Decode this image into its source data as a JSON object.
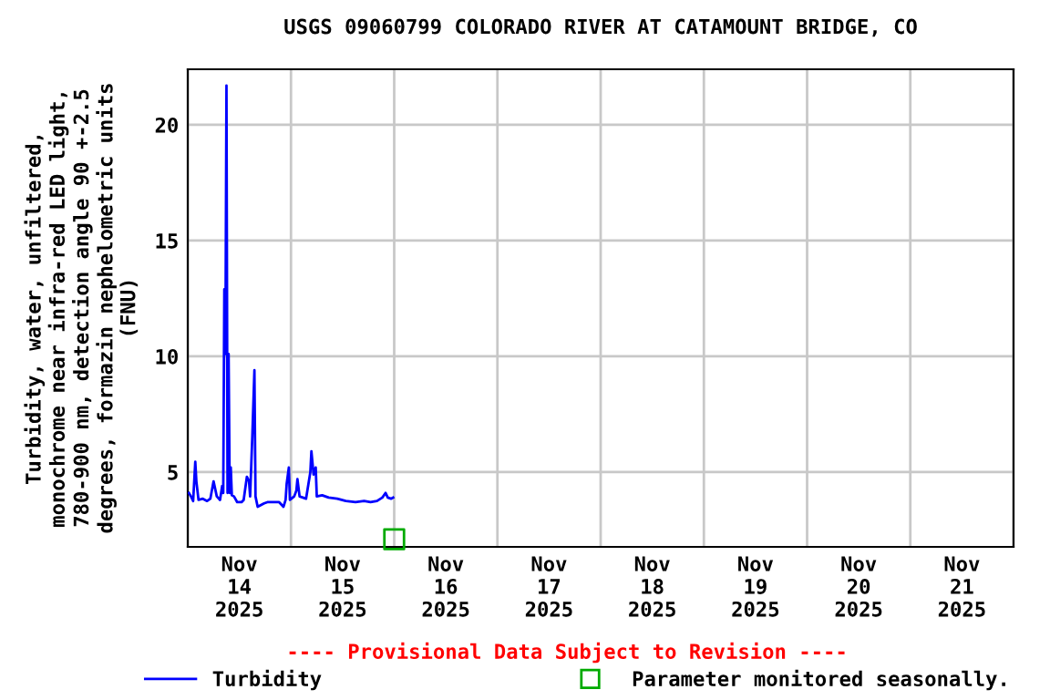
{
  "chart_data": {
    "type": "line",
    "title": "USGS 09060799 COLORADO RIVER AT CATAMOUNT BRIDGE, CO",
    "ylabel": "Turbidity, water, unfiltered,\nmonochrome near infra-red LED light,\n780-900 nm, detection angle 90 +-2.5\ndegrees, formazin nephelometric units\n(FNU)",
    "annotations": [
      "---- Provisional Data Subject to Revision ----"
    ],
    "series": [
      {
        "name": "Turbidity",
        "color": "#0000ff",
        "x": [
          "2025-11-14T00:15",
          "2025-11-14T00:45",
          "2025-11-14T01:15",
          "2025-11-14T01:45",
          "2025-11-14T02:00",
          "2025-11-14T02:30",
          "2025-11-14T03:30",
          "2025-11-14T04:30",
          "2025-11-14T05:15",
          "2025-11-14T06:00",
          "2025-11-14T06:45",
          "2025-11-14T07:30",
          "2025-11-14T08:00",
          "2025-11-14T08:15",
          "2025-11-14T08:30",
          "2025-11-14T08:45",
          "2025-11-14T09:00",
          "2025-11-14T09:15",
          "2025-11-14T09:30",
          "2025-11-14T09:45",
          "2025-11-14T10:00",
          "2025-11-14T10:15",
          "2025-11-14T10:45",
          "2025-11-14T11:30",
          "2025-11-14T12:30",
          "2025-11-14T13:00",
          "2025-11-14T13:45",
          "2025-11-14T14:15",
          "2025-11-14T14:30",
          "2025-11-14T15:00",
          "2025-11-14T15:30",
          "2025-11-14T15:45",
          "2025-11-14T16:15",
          "2025-11-14T17:45",
          "2025-11-14T18:30",
          "2025-11-14T20:00",
          "2025-11-14T21:15",
          "2025-11-14T22:15",
          "2025-11-14T22:45",
          "2025-11-14T23:00",
          "2025-11-14T23:30",
          "2025-11-14T23:45",
          "2025-11-15T00:45",
          "2025-11-15T01:15",
          "2025-11-15T01:30",
          "2025-11-15T02:00",
          "2025-11-15T03:30",
          "2025-11-15T04:30",
          "2025-11-15T04:45",
          "2025-11-15T05:15",
          "2025-11-15T05:45",
          "2025-11-15T06:00",
          "2025-11-15T07:15",
          "2025-11-15T08:45",
          "2025-11-15T10:45",
          "2025-11-15T12:45",
          "2025-11-15T15:00",
          "2025-11-15T17:00",
          "2025-11-15T18:30",
          "2025-11-15T20:00",
          "2025-11-15T21:15",
          "2025-11-15T22:00",
          "2025-11-15T22:30",
          "2025-11-15T23:15",
          "2025-11-15T23:45"
        ],
        "values": [
          4.1,
          3.95,
          3.75,
          5.45,
          4.6,
          3.8,
          3.85,
          3.75,
          3.85,
          4.6,
          3.95,
          3.8,
          4.4,
          4.1,
          12.9,
          10.1,
          21.7,
          4.1,
          10.1,
          4.1,
          5.2,
          4.0,
          3.95,
          3.7,
          3.7,
          3.8,
          4.8,
          4.6,
          3.95,
          6.5,
          9.4,
          3.95,
          3.5,
          3.65,
          3.7,
          3.7,
          3.7,
          3.5,
          3.8,
          4.5,
          5.2,
          3.8,
          3.95,
          4.2,
          4.7,
          3.95,
          3.85,
          5.0,
          5.9,
          4.9,
          5.2,
          3.95,
          4.0,
          3.9,
          3.85,
          3.75,
          3.7,
          3.75,
          3.7,
          3.75,
          3.9,
          4.1,
          3.9,
          3.85,
          3.9
        ]
      },
      {
        "name": "Parameter monitored seasonally.",
        "color": "#00aa00",
        "type": "scatter",
        "marker": "square",
        "x": [
          "2025-11-16T00:00"
        ],
        "values": [
          2.1
        ]
      }
    ],
    "xlim": [
      "2025-11-14T00:00",
      "2025-11-22T00:00"
    ],
    "xticks": [
      {
        "value": "2025-11-14T00:00",
        "label": null
      },
      {
        "value": "2025-11-14T12:00",
        "label": "Nov\n14\n2025"
      },
      {
        "value": "2025-11-15T00:00",
        "label": null
      },
      {
        "value": "2025-11-15T12:00",
        "label": "Nov\n15\n2025"
      },
      {
        "value": "2025-11-16T00:00",
        "label": null
      },
      {
        "value": "2025-11-16T12:00",
        "label": "Nov\n16\n2025"
      },
      {
        "value": "2025-11-17T00:00",
        "label": null
      },
      {
        "value": "2025-11-17T12:00",
        "label": "Nov\n17\n2025"
      },
      {
        "value": "2025-11-18T00:00",
        "label": null
      },
      {
        "value": "2025-11-18T12:00",
        "label": "Nov\n18\n2025"
      },
      {
        "value": "2025-11-19T00:00",
        "label": null
      },
      {
        "value": "2025-11-19T12:00",
        "label": "Nov\n19\n2025"
      },
      {
        "value": "2025-11-20T00:00",
        "label": null
      },
      {
        "value": "2025-11-20T12:00",
        "label": "Nov\n20\n2025"
      },
      {
        "value": "2025-11-21T00:00",
        "label": null
      },
      {
        "value": "2025-11-21T12:00",
        "label": "Nov\n21\n2025"
      },
      {
        "value": "2025-11-22T00:00",
        "label": null
      }
    ],
    "ylim": [
      1.77,
      22.4
    ],
    "yticks": [
      5,
      10,
      15,
      20
    ],
    "grid": true,
    "legend": "bottom"
  }
}
